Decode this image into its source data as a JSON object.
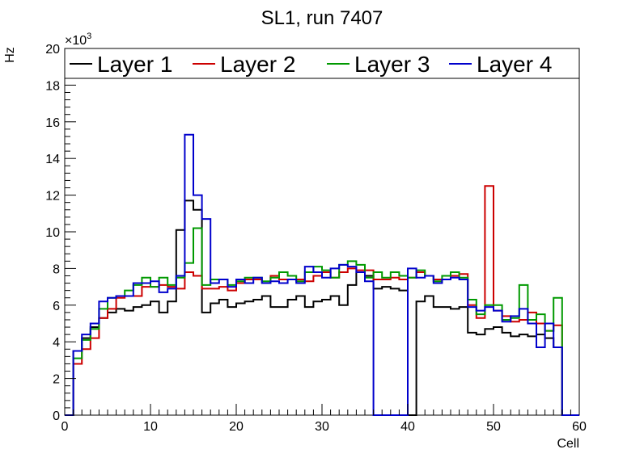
{
  "chart_data": {
    "type": "line",
    "title": "SL1, run 7407",
    "xlabel": "Cell",
    "ylabel": "Hz",
    "y_multiplier_label": "×10",
    "y_multiplier_exp": "3",
    "xlim": [
      0,
      60
    ],
    "ylim": [
      0,
      20
    ],
    "x_ticks": [
      "0",
      "10",
      "20",
      "30",
      "40",
      "50",
      "60"
    ],
    "y_ticks": [
      "0",
      "2",
      "4",
      "6",
      "8",
      "10",
      "12",
      "14",
      "16",
      "18",
      "20"
    ],
    "legend_position": "top",
    "series": [
      {
        "name": "Layer 1",
        "color": "#000000",
        "values": [
          0,
          3.5,
          4.2,
          4.8,
          5.3,
          5.6,
          5.8,
          5.7,
          5.9,
          6.0,
          6.2,
          5.6,
          6.2,
          10.1,
          11.7,
          11.2,
          5.6,
          6.1,
          6.3,
          5.9,
          6.1,
          6.2,
          6.3,
          6.5,
          5.9,
          5.9,
          6.3,
          6.5,
          5.9,
          6.2,
          6.3,
          6.5,
          6.0,
          7.1,
          7.8,
          7.6,
          6.9,
          7.0,
          6.9,
          6.8,
          0,
          6.2,
          6.5,
          5.9,
          5.9,
          5.8,
          5.9,
          4.5,
          4.4,
          4.7,
          4.8,
          4.5,
          4.3,
          4.4,
          4.3,
          4.4,
          4.2,
          3.7,
          0,
          0
        ]
      },
      {
        "name": "Layer 2",
        "color": "#cc0000",
        "values": [
          0,
          2.8,
          3.6,
          4.2,
          5.3,
          5.8,
          6.4,
          6.5,
          6.5,
          7.0,
          7.0,
          7.1,
          7.0,
          6.9,
          7.8,
          7.6,
          6.9,
          6.9,
          7.0,
          6.8,
          7.2,
          7.4,
          7.4,
          7.2,
          7.6,
          7.4,
          7.4,
          7.4,
          7.3,
          7.6,
          7.8,
          7.5,
          7.8,
          8.0,
          7.9,
          7.9,
          7.4,
          7.4,
          7.5,
          7.4,
          7.5,
          7.8,
          7.6,
          7.4,
          7.4,
          7.6,
          7.7,
          6.0,
          5.3,
          12.5,
          5.7,
          5.4,
          5.1,
          5.2,
          5.6,
          5.0,
          4.6,
          4.9,
          0,
          0
        ]
      },
      {
        "name": "Layer 3",
        "color": "#009900",
        "values": [
          0,
          3.1,
          4.1,
          4.7,
          5.8,
          6.4,
          6.5,
          6.8,
          7.1,
          7.5,
          7.0,
          7.5,
          7.1,
          7.5,
          8.3,
          10.2,
          7.1,
          7.4,
          7.4,
          7.1,
          7.3,
          7.5,
          7.5,
          7.3,
          7.5,
          7.8,
          7.6,
          7.3,
          7.8,
          8.1,
          7.9,
          7.5,
          8.2,
          8.4,
          8.2,
          7.5,
          7.8,
          7.5,
          7.8,
          7.6,
          7.5,
          7.9,
          7.6,
          7.3,
          7.6,
          7.8,
          7.5,
          6.3,
          5.5,
          6.0,
          6.0,
          5.2,
          5.3,
          7.1,
          5.2,
          5.5,
          4.6,
          6.4,
          0,
          0
        ]
      },
      {
        "name": "Layer 4",
        "color": "#0000cc",
        "values": [
          0,
          3.5,
          4.4,
          5.0,
          6.2,
          6.4,
          6.5,
          6.5,
          7.2,
          7.2,
          7.3,
          6.7,
          6.9,
          7.6,
          15.3,
          12.0,
          10.7,
          7.2,
          7.4,
          7.0,
          7.4,
          7.2,
          7.5,
          7.2,
          7.3,
          7.2,
          7.4,
          7.2,
          8.1,
          7.8,
          7.5,
          8.0,
          8.2,
          8.1,
          7.8,
          7.3,
          0,
          0,
          0,
          0,
          8.0,
          7.5,
          7.6,
          7.2,
          7.4,
          7.5,
          7.4,
          5.9,
          5.7,
          5.9,
          5.7,
          5.1,
          5.4,
          5.8,
          5.0,
          3.7,
          5.0,
          3.7,
          0,
          0
        ]
      }
    ]
  }
}
